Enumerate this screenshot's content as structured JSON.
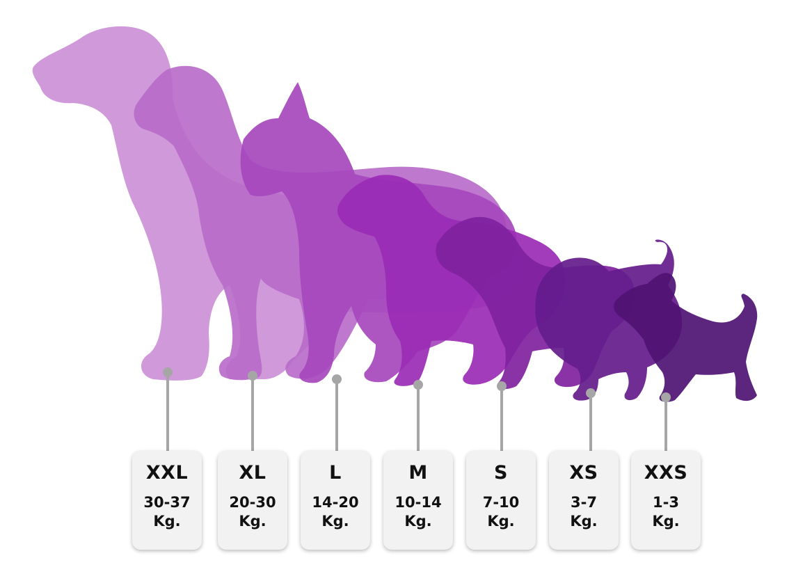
{
  "sizes": [
    {
      "label": "XXL",
      "range": "30-37",
      "unit": "Kg.",
      "color": "#cc94d8"
    },
    {
      "label": "XL",
      "range": "20-30",
      "unit": "Kg.",
      "color": "#b86cc9"
    },
    {
      "label": "L",
      "range": "14-20",
      "unit": "Kg.",
      "color": "#a648bd"
    },
    {
      "label": "M",
      "range": "10-14",
      "unit": "Kg.",
      "color": "#9a2bb5"
    },
    {
      "label": "S",
      "range": "7-10",
      "unit": "Kg.",
      "color": "#7f22a0"
    },
    {
      "label": "XS",
      "range": "3-7",
      "unit": "Kg.",
      "color": "#641c8c"
    },
    {
      "label": "XXS",
      "range": "1-3",
      "unit": "Kg.",
      "color": "#4f1473"
    }
  ],
  "connector_color": "#a6a6a6"
}
